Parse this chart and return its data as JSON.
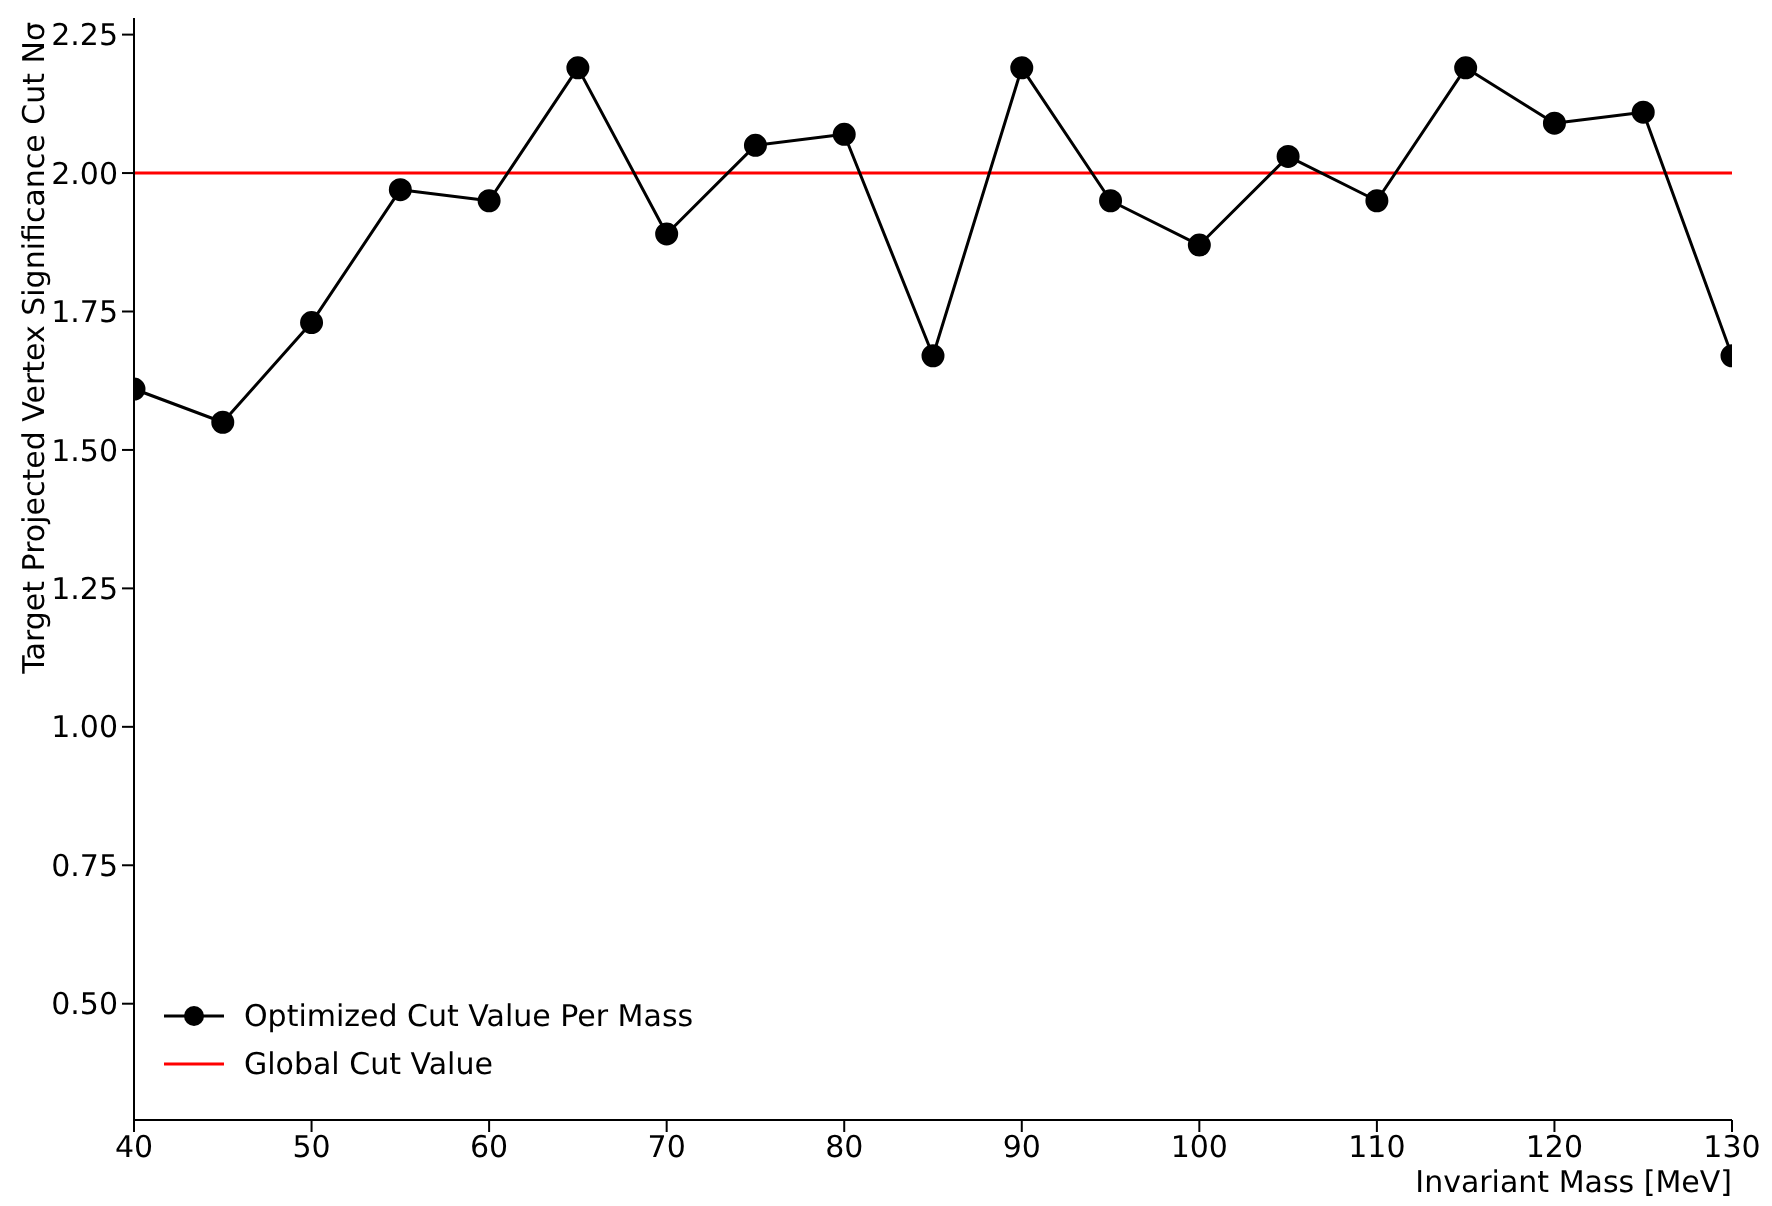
{
  "chart_data": {
    "type": "line",
    "xlabel": "Invariant Mass [MeV]",
    "ylabel": "Target Projected Vertex Significance Cut Nσ",
    "x": [
      40,
      45,
      50,
      55,
      60,
      65,
      70,
      75,
      80,
      85,
      90,
      95,
      100,
      105,
      110,
      115,
      120,
      125,
      130
    ],
    "series": [
      {
        "name": "Optimized Cut Value Per Mass",
        "color": "#000000",
        "values": [
          1.61,
          1.55,
          1.73,
          1.97,
          1.95,
          2.19,
          1.89,
          2.05,
          2.07,
          1.67,
          2.19,
          1.95,
          1.87,
          2.03,
          1.95,
          2.19,
          2.09,
          2.11,
          1.67
        ]
      }
    ],
    "ref_lines": [
      {
        "axis": "y",
        "value": 2.0,
        "label": "Global Cut Value",
        "color": "#ff0000"
      }
    ],
    "xlim": [
      40,
      130
    ],
    "xticks": [
      40,
      50,
      60,
      70,
      80,
      90,
      100,
      110,
      120,
      130
    ],
    "ylim": [
      0.29,
      2.28
    ],
    "yticks": [
      {
        "value": 0.5,
        "label": "0.50"
      },
      {
        "value": 0.75,
        "label": "0.75"
      },
      {
        "value": 1.0,
        "label": "1.00"
      },
      {
        "value": 1.25,
        "label": "1.25"
      },
      {
        "value": 1.5,
        "label": "1.50"
      },
      {
        "value": 1.75,
        "label": "1.75"
      },
      {
        "value": 2.0,
        "label": "2.00"
      },
      {
        "value": 2.25,
        "label": "2.25"
      }
    ],
    "marker": "circle",
    "line_style": "solid",
    "grid": false,
    "legend": "bottom left"
  }
}
